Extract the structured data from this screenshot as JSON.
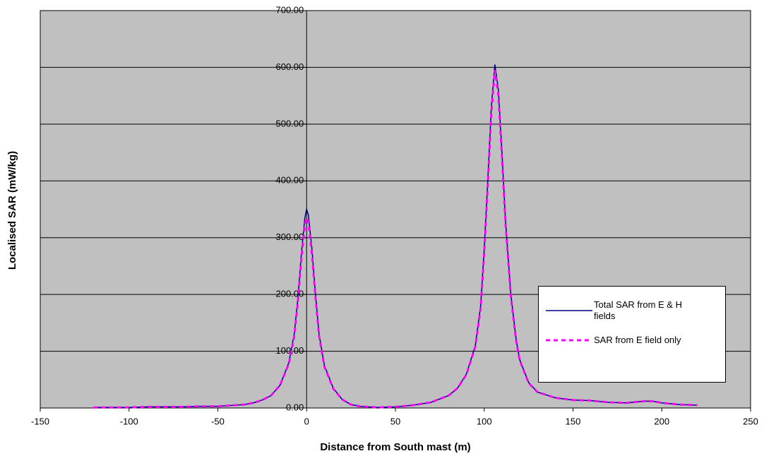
{
  "chart_data": {
    "type": "line",
    "x_label": "Distance from South mast (m)",
    "y_label": "Localised SAR (mW/kg)",
    "x": [
      -120,
      -110,
      -100,
      -90,
      -80,
      -70,
      -60,
      -50,
      -40,
      -35,
      -30,
      -25,
      -20,
      -15,
      -10,
      -7,
      -5,
      -3,
      -1,
      0,
      1,
      3,
      5,
      7,
      10,
      15,
      20,
      25,
      30,
      40,
      50,
      60,
      70,
      80,
      85,
      90,
      95,
      98,
      100,
      102,
      104,
      106,
      108,
      110,
      112,
      115,
      118,
      120,
      125,
      130,
      140,
      150,
      160,
      170,
      180,
      190,
      195,
      200,
      210,
      220
    ],
    "series": [
      {
        "name": "Total SAR from E & H fields",
        "color": "#000080",
        "dashed": false,
        "values": [
          1,
          1,
          1,
          2,
          2,
          2,
          3,
          3,
          5,
          6,
          9,
          14,
          22,
          40,
          80,
          130,
          190,
          270,
          335,
          350,
          340,
          280,
          200,
          130,
          75,
          35,
          15,
          6,
          3,
          1,
          2,
          5,
          10,
          22,
          35,
          60,
          110,
          180,
          280,
          400,
          530,
          605,
          560,
          450,
          330,
          200,
          120,
          85,
          45,
          28,
          18,
          14,
          13,
          10,
          9,
          12,
          12,
          9,
          6,
          5
        ]
      },
      {
        "name": "SAR from E field only",
        "color": "#ff00ff",
        "dashed": true,
        "values": [
          1,
          1,
          1,
          2,
          2,
          2,
          3,
          3,
          5,
          6,
          9,
          14,
          22,
          40,
          78,
          125,
          185,
          260,
          322,
          335,
          327,
          270,
          195,
          127,
          73,
          34,
          15,
          6,
          3,
          1,
          2,
          5,
          10,
          22,
          35,
          59,
          108,
          176,
          273,
          392,
          518,
          595,
          550,
          442,
          325,
          197,
          118,
          84,
          44,
          28,
          18,
          14,
          13,
          10,
          9,
          12,
          12,
          9,
          6,
          5
        ]
      }
    ],
    "xlim": [
      -150,
      250
    ],
    "xticks": [
      -150,
      -100,
      -50,
      0,
      50,
      100,
      150,
      200,
      250
    ],
    "ylim": [
      0,
      700
    ],
    "yticks": [
      {
        "value": 0,
        "label": "0.00"
      },
      {
        "value": 100,
        "label": "100.00"
      },
      {
        "value": 200,
        "label": "200.00"
      },
      {
        "value": 300,
        "label": "300.00"
      },
      {
        "value": 400,
        "label": "400.00"
      },
      {
        "value": 500,
        "label": "500.00"
      },
      {
        "value": 600,
        "label": "600.00"
      },
      {
        "value": 700,
        "label": "700.00"
      }
    ],
    "grid": true,
    "plot_background": "#c0c0c0"
  }
}
